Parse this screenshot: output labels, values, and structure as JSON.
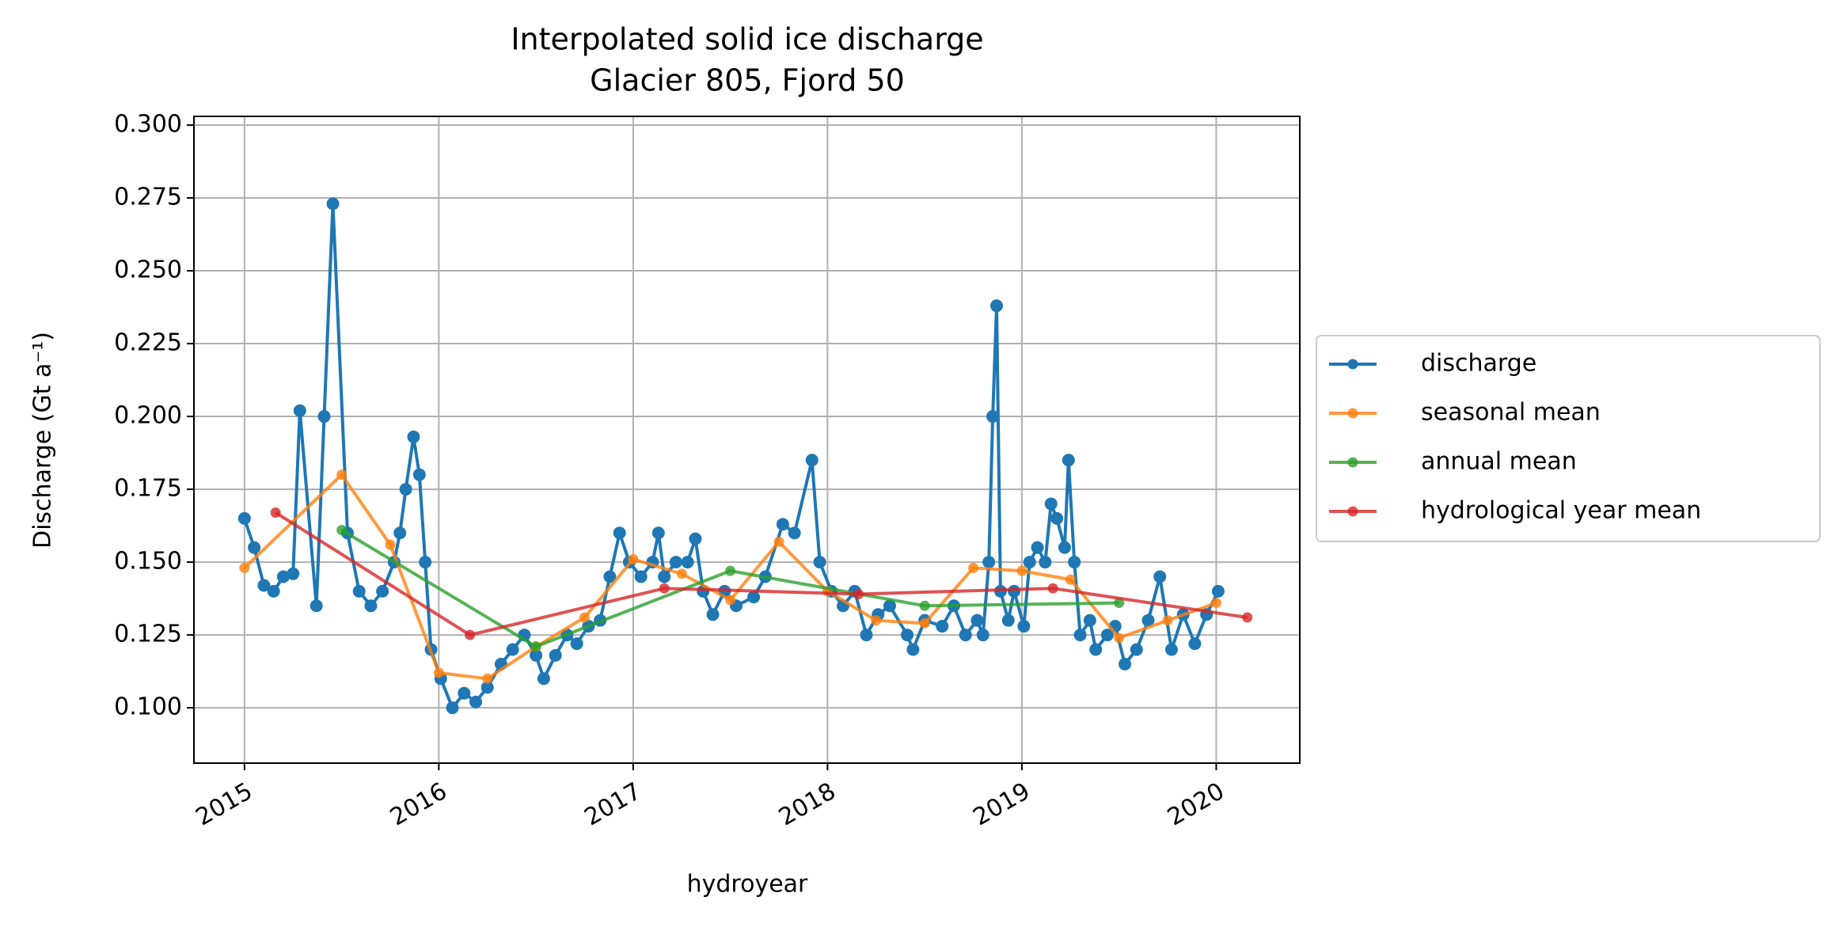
{
  "chart_data": {
    "type": "line",
    "title": "Interpolated solid ice discharge",
    "subtitle": "Glacier 805, Fjord 50",
    "x_label": "hydroyear",
    "y_label": "Discharge (Gt a⁻¹)",
    "xlim": [
      2014.74,
      2020.43
    ],
    "xticks": [
      2015,
      2016,
      2017,
      2018,
      2019,
      2020
    ],
    "ylim": [
      0.081,
      0.303
    ],
    "yticks": [
      {
        "value": 0.1,
        "label": "0.100"
      },
      0.125,
      {
        "value": 0.15,
        "label": "0.150"
      },
      0.175,
      {
        "value": 0.2,
        "label": "0.200"
      },
      0.225,
      {
        "value": 0.25,
        "label": "0.250"
      },
      0.275,
      {
        "value": 0.3,
        "label": "0.300"
      }
    ],
    "grid": true,
    "legend": "outside right",
    "series": [
      {
        "name": "discharge",
        "color": "#1f77b4",
        "x": [
          2015.0,
          2015.05,
          2015.1,
          2015.15,
          2015.2,
          2015.25,
          2015.285,
          2015.37,
          2015.41,
          2015.455,
          2015.53,
          2015.59,
          2015.65,
          2015.71,
          2015.77,
          2015.8,
          2015.83,
          2015.87,
          2015.9,
          2015.93,
          2015.96,
          2016.01,
          2016.07,
          2016.13,
          2016.19,
          2016.25,
          2016.32,
          2016.38,
          2016.44,
          2016.5,
          2016.54,
          2016.6,
          2016.66,
          2016.71,
          2016.77,
          2016.83,
          2016.88,
          2016.93,
          2016.98,
          2017.04,
          2017.1,
          2017.13,
          2017.16,
          2017.22,
          2017.28,
          2017.32,
          2017.36,
          2017.41,
          2017.47,
          2017.53,
          2017.62,
          2017.68,
          2017.77,
          2017.83,
          2017.92,
          2017.96,
          2018.02,
          2018.08,
          2018.14,
          2018.2,
          2018.26,
          2018.32,
          2018.41,
          2018.44,
          2018.5,
          2018.59,
          2018.65,
          2018.71,
          2018.77,
          2018.8,
          2018.83,
          2018.85,
          2018.87,
          2018.89,
          2018.93,
          2018.96,
          2019.01,
          2019.04,
          2019.08,
          2019.12,
          2019.15,
          2019.18,
          2019.22,
          2019.24,
          2019.27,
          2019.3,
          2019.35,
          2019.38,
          2019.44,
          2019.48,
          2019.53,
          2019.59,
          2019.65,
          2019.71,
          2019.77,
          2019.83,
          2019.89,
          2019.95,
          2020.01
        ],
        "values": [
          0.165,
          0.155,
          0.142,
          0.14,
          0.145,
          0.146,
          0.202,
          0.135,
          0.2,
          0.273,
          0.16,
          0.14,
          0.135,
          0.14,
          0.15,
          0.16,
          0.175,
          0.193,
          0.18,
          0.15,
          0.12,
          0.11,
          0.1,
          0.105,
          0.102,
          0.107,
          0.115,
          0.12,
          0.125,
          0.118,
          0.11,
          0.118,
          0.125,
          0.122,
          0.128,
          0.13,
          0.145,
          0.16,
          0.15,
          0.145,
          0.15,
          0.16,
          0.145,
          0.15,
          0.15,
          0.158,
          0.14,
          0.132,
          0.14,
          0.135,
          0.138,
          0.145,
          0.163,
          0.16,
          0.185,
          0.15,
          0.14,
          0.135,
          0.14,
          0.125,
          0.132,
          0.135,
          0.125,
          0.12,
          0.13,
          0.128,
          0.135,
          0.125,
          0.13,
          0.125,
          0.15,
          0.2,
          0.238,
          0.14,
          0.13,
          0.14,
          0.128,
          0.15,
          0.155,
          0.15,
          0.17,
          0.165,
          0.155,
          0.185,
          0.15,
          0.125,
          0.13,
          0.12,
          0.125,
          0.128,
          0.115,
          0.12,
          0.13,
          0.145,
          0.12,
          0.132,
          0.122,
          0.132,
          0.14
        ]
      },
      {
        "name": "seasonal mean",
        "color": "#ff7f0e",
        "x": [
          2015.0,
          2015.5,
          2015.75,
          2016.0,
          2016.25,
          2016.5,
          2016.75,
          2017.0,
          2017.25,
          2017.5,
          2017.75,
          2018.0,
          2018.25,
          2018.5,
          2018.75,
          2019.0,
          2019.25,
          2019.5,
          2019.75,
          2020.0
        ],
        "values": [
          0.148,
          0.18,
          0.156,
          0.112,
          0.11,
          0.121,
          0.131,
          0.151,
          0.146,
          0.137,
          0.157,
          0.14,
          0.13,
          0.129,
          0.148,
          0.147,
          0.144,
          0.124,
          0.13,
          0.136
        ]
      },
      {
        "name": "annual mean",
        "color": "#2ca02c",
        "x": [
          2015.5,
          2016.5,
          2017.5,
          2018.5,
          2019.5
        ],
        "values": [
          0.161,
          0.121,
          0.147,
          0.135,
          0.136
        ]
      },
      {
        "name": "hydrological year mean",
        "color": "#d62728",
        "x": [
          2015.16,
          2016.16,
          2017.16,
          2018.16,
          2019.16,
          2020.16
        ],
        "values": [
          0.167,
          0.125,
          0.141,
          0.139,
          0.141,
          0.131
        ]
      }
    ]
  }
}
